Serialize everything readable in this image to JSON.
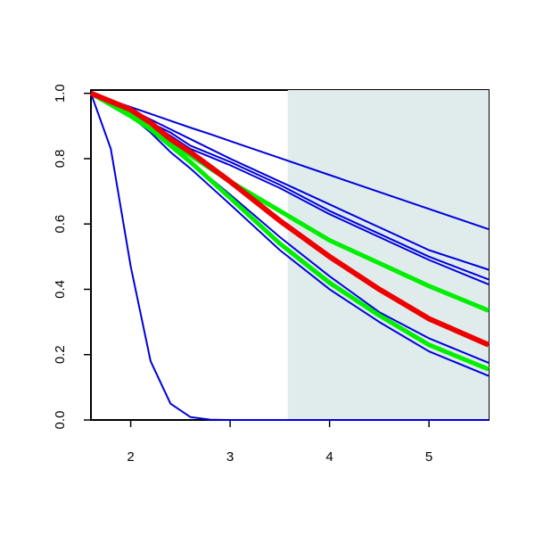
{
  "chart_data": {
    "type": "line",
    "x": [
      1.6,
      1.8,
      2.0,
      2.2,
      2.4,
      2.6,
      2.8,
      3.0,
      3.5,
      4.0,
      4.5,
      5.0,
      5.6
    ],
    "series": [
      {
        "color": "#0000dd",
        "width": 2,
        "values": [
          1,
          0.83,
          0.47,
          0.18,
          0.05,
          0.009,
          0.001,
          0,
          0,
          0,
          0,
          0,
          0
        ]
      },
      {
        "color": "#0000dd",
        "width": 2,
        "values": [
          1,
          0.979,
          0.958,
          0.937,
          0.916,
          0.895,
          0.875,
          0.854,
          0.802,
          0.75,
          0.698,
          0.646,
          0.584
        ]
      },
      {
        "color": "#0000dd",
        "width": 2,
        "values": [
          1,
          0.975,
          0.95,
          0.92,
          0.89,
          0.86,
          0.83,
          0.8,
          0.73,
          0.66,
          0.59,
          0.52,
          0.46
        ]
      },
      {
        "color": "#0000dd",
        "width": 2,
        "values": [
          1,
          0.97,
          0.94,
          0.91,
          0.88,
          0.84,
          0.815,
          0.79,
          0.72,
          0.64,
          0.57,
          0.5,
          0.43
        ]
      },
      {
        "color": "#0000dd",
        "width": 2,
        "values": [
          1,
          0.97,
          0.94,
          0.91,
          0.87,
          0.83,
          0.805,
          0.78,
          0.71,
          0.63,
          0.56,
          0.49,
          0.415
        ]
      },
      {
        "color": "#0000dd",
        "width": 2,
        "values": [
          1,
          0.97,
          0.94,
          0.89,
          0.84,
          0.79,
          0.74,
          0.69,
          0.56,
          0.44,
          0.33,
          0.25,
          0.175
        ]
      },
      {
        "color": "#0000dd",
        "width": 2,
        "values": [
          1,
          0.965,
          0.93,
          0.88,
          0.82,
          0.77,
          0.715,
          0.66,
          0.52,
          0.4,
          0.3,
          0.21,
          0.135
        ]
      },
      {
        "color": "#00ee00",
        "width": 5,
        "values": [
          1,
          0.965,
          0.93,
          0.89,
          0.85,
          0.81,
          0.77,
          0.73,
          0.64,
          0.55,
          0.48,
          0.41,
          0.335
        ]
      },
      {
        "color": "#00ee00",
        "width": 5,
        "values": [
          1,
          0.97,
          0.94,
          0.89,
          0.84,
          0.79,
          0.735,
          0.68,
          0.54,
          0.42,
          0.32,
          0.23,
          0.155
        ]
      },
      {
        "color": "#ee0000",
        "width": 6,
        "values": [
          1,
          0.975,
          0.95,
          0.91,
          0.86,
          0.82,
          0.775,
          0.73,
          0.61,
          0.5,
          0.4,
          0.31,
          0.23
        ]
      }
    ],
    "shade": {
      "x": [
        3.58,
        5.6
      ],
      "color": "#e0ecec"
    },
    "xlim": [
      1.6,
      5.6
    ],
    "ylim": [
      0,
      1.01
    ],
    "xticks": [
      2,
      3,
      4,
      5
    ],
    "yticks": [
      {
        "value": 0,
        "label": "0.0"
      },
      0.2,
      0.4,
      0.6,
      0.8,
      {
        "value": 1,
        "label": "1.0"
      }
    ]
  }
}
